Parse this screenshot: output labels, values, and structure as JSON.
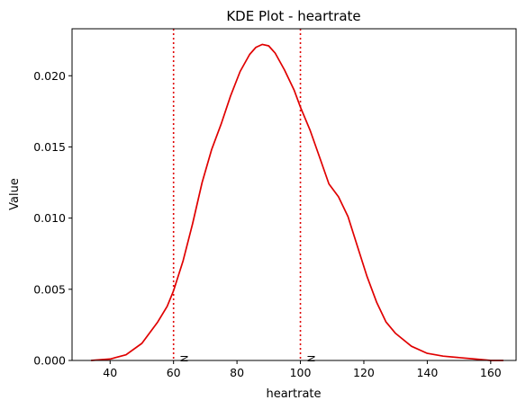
{
  "chart_data": {
    "type": "line",
    "title": "KDE Plot - heartrate",
    "xlabel": "heartrate",
    "ylabel": "Value",
    "xlim": [
      28,
      168
    ],
    "ylim": [
      0,
      0.0233
    ],
    "xticks": [
      40,
      60,
      80,
      100,
      120,
      140,
      160
    ],
    "yticks": [
      0.0,
      0.005,
      0.01,
      0.015,
      0.02
    ],
    "ytick_labels": [
      "0.000",
      "0.005",
      "0.010",
      "0.015",
      "0.020"
    ],
    "grid": false,
    "legend": "none",
    "series": [
      {
        "color": "#e00000",
        "x": [
          34,
          40,
          45,
          50,
          55,
          58,
          60,
          63,
          66,
          69,
          72,
          75,
          78,
          81,
          84,
          86,
          88,
          90,
          92,
          95,
          98,
          100,
          103,
          106,
          109,
          112,
          115,
          118,
          121,
          124,
          127,
          130,
          135,
          140,
          145,
          150,
          155,
          160,
          164
        ],
        "y": [
          0.0,
          0.0001,
          0.0004,
          0.0012,
          0.0027,
          0.0038,
          0.0049,
          0.007,
          0.0096,
          0.0125,
          0.0148,
          0.0166,
          0.0186,
          0.0203,
          0.0215,
          0.022,
          0.0222,
          0.0221,
          0.0216,
          0.0204,
          0.019,
          0.0178,
          0.0162,
          0.0143,
          0.0124,
          0.0115,
          0.0101,
          0.008,
          0.0059,
          0.0041,
          0.0027,
          0.0019,
          0.001,
          0.0005,
          0.0003,
          0.0002,
          0.0001,
          0.0,
          0.0
        ]
      }
    ],
    "vlines": [
      {
        "x": 60,
        "label": "N",
        "color": "#e00000",
        "style": "dotted"
      },
      {
        "x": 100,
        "label": "N",
        "color": "#e00000",
        "style": "dotted"
      }
    ]
  }
}
